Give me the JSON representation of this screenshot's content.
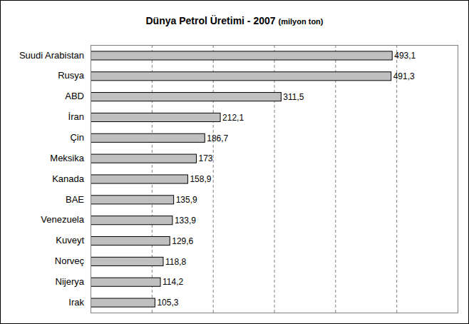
{
  "chart_data": {
    "type": "bar",
    "orientation": "horizontal",
    "title": "Dünya Petrol Üretimi - 2007",
    "subtitle": "(milyon ton)",
    "categories": [
      "Suudi Arabistan",
      "Rusya",
      "ABD",
      "İran",
      "Çin",
      "Meksika",
      "Kanada",
      "BAE",
      "Venezuela",
      "Kuveyt",
      "Norveç",
      "Nijerya",
      "Irak"
    ],
    "values": [
      493.1,
      491.3,
      311.5,
      212.1,
      186.7,
      173,
      158.9,
      135.9,
      133.9,
      129.6,
      118.8,
      114.2,
      105.3
    ],
    "value_labels": [
      "493,1",
      "491,3",
      "311,5",
      "212,1",
      "186,7",
      "173",
      "158,9",
      "135,9",
      "133,9",
      "129,6",
      "118,8",
      "114,2",
      "105,3"
    ],
    "color": "#c0c0c0",
    "xlim": [
      0,
      600
    ],
    "xticks": [
      0,
      100,
      200,
      300,
      400,
      500,
      600
    ],
    "grid": true,
    "data_labels": true,
    "tick_labels": false
  }
}
